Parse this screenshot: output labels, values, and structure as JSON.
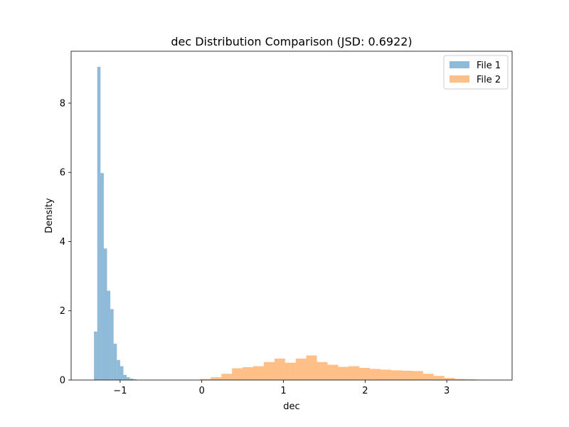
{
  "chart_data": {
    "type": "bar",
    "title": "dec Distribution Comparison (JSD: 0.6922)",
    "xlabel": "dec",
    "ylabel": "Density",
    "xlim": [
      -1.6,
      3.8
    ],
    "ylim": [
      0,
      9.5
    ],
    "xticks": [
      -1,
      0,
      1,
      2,
      3
    ],
    "xtick_labels": [
      "−1",
      "0",
      "1",
      "2",
      "3"
    ],
    "yticks": [
      0,
      2,
      4,
      6,
      8
    ],
    "ytick_labels": [
      "0",
      "2",
      "4",
      "6",
      "8"
    ],
    "grid": false,
    "legend_position": "top-right",
    "series": [
      {
        "name": "File 1",
        "color": "#1f77b4",
        "alpha": 0.5,
        "bin_edges": [
          -1.32,
          -1.28,
          -1.24,
          -1.2,
          -1.16,
          -1.12,
          -1.08,
          -1.04,
          -1.0,
          -0.96,
          -0.92,
          -0.88,
          -0.84,
          -0.8
        ],
        "values": [
          1.4,
          9.05,
          5.98,
          3.8,
          2.58,
          2.05,
          1.05,
          0.58,
          0.4,
          0.15,
          0.08,
          0.04,
          0.02
        ]
      },
      {
        "name": "File 2",
        "color": "#ff7f0e",
        "alpha": 0.5,
        "bin_edges": [
          -0.02,
          0.11,
          0.24,
          0.37,
          0.5,
          0.63,
          0.76,
          0.89,
          1.02,
          1.15,
          1.28,
          1.41,
          1.54,
          1.67,
          1.8,
          1.93,
          2.06,
          2.19,
          2.32,
          2.45,
          2.58,
          2.71,
          2.84,
          2.97,
          3.1,
          3.23,
          3.36,
          3.49
        ],
        "values": [
          0.03,
          0.08,
          0.18,
          0.34,
          0.37,
          0.4,
          0.52,
          0.62,
          0.5,
          0.62,
          0.71,
          0.52,
          0.44,
          0.38,
          0.4,
          0.35,
          0.32,
          0.3,
          0.28,
          0.27,
          0.26,
          0.18,
          0.12,
          0.06,
          0.03,
          0.02,
          0.01
        ]
      }
    ]
  }
}
